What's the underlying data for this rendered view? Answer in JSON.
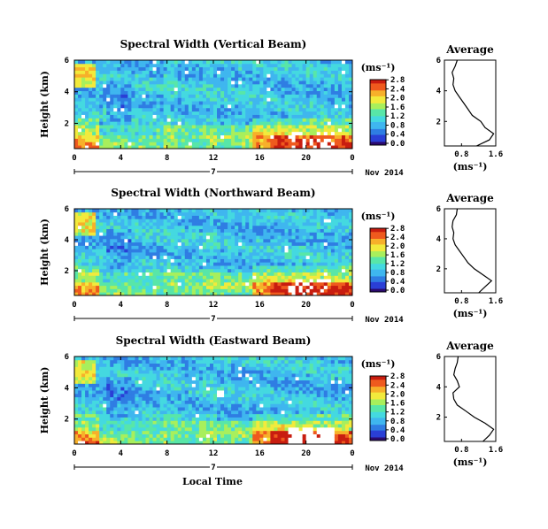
{
  "figure": {
    "xlabel": "Local Time",
    "date_label": "Nov 2014",
    "day_marker": "7",
    "colorbar_unit": "(ms⁻¹)",
    "average_title": "Average",
    "average_unit": "(ms⁻¹)",
    "ylabel": "Height (km)"
  },
  "colors": {
    "colormap": [
      "#2b0a70",
      "#2a3fd6",
      "#2f7de3",
      "#3fb6ef",
      "#44d9e0",
      "#58e6a8",
      "#a8ef5c",
      "#f2ea3c",
      "#f7b02a",
      "#ef5a1e",
      "#c81d10"
    ]
  },
  "chart_data": [
    {
      "type": "heatmap",
      "title": "Spectral Width (Vertical Beam)",
      "ylabel": "Height (km)",
      "xlabel": "",
      "x_ticks": [
        "0",
        "4",
        "8",
        "12",
        "16",
        "20",
        "0"
      ],
      "y_ticks": [
        "2",
        "4",
        "6"
      ],
      "xlim": [
        0,
        24
      ],
      "ylim": [
        0.4,
        6
      ],
      "colorbar_ticks": [
        "0.0",
        "0.4",
        "0.8",
        "1.2",
        "1.6",
        "2.0",
        "2.4",
        "2.8"
      ],
      "colorbar_range": [
        0,
        2.8
      ],
      "average": {
        "title": "Average",
        "xlabel": "(ms⁻¹)",
        "x_ticks": [
          "0.8",
          "1.6"
        ],
        "y_ticks": [
          "2",
          "4",
          "6"
        ],
        "xlim": [
          0.4,
          1.6
        ],
        "height_km": [
          0.4,
          0.8,
          1.2,
          1.6,
          2.0,
          2.4,
          2.8,
          3.2,
          3.6,
          4.0,
          4.4,
          4.8,
          5.2,
          5.6,
          6.0
        ],
        "width": [
          1.15,
          1.45,
          1.55,
          1.35,
          1.25,
          1.05,
          0.95,
          0.85,
          0.75,
          0.65,
          0.6,
          0.62,
          0.58,
          0.65,
          0.7
        ]
      }
    },
    {
      "type": "heatmap",
      "title": "Spectral Width (Northward Beam)",
      "ylabel": "Height (km)",
      "xlabel": "",
      "x_ticks": [
        "0",
        "4",
        "8",
        "12",
        "16",
        "20",
        "0"
      ],
      "y_ticks": [
        "2",
        "4",
        "6"
      ],
      "xlim": [
        0,
        24
      ],
      "ylim": [
        0.4,
        6
      ],
      "colorbar_ticks": [
        "0.0",
        "0.4",
        "0.8",
        "1.2",
        "1.6",
        "2.0",
        "2.4",
        "2.8"
      ],
      "colorbar_range": [
        0,
        2.8
      ],
      "average": {
        "title": "Average",
        "xlabel": "(ms⁻¹)",
        "x_ticks": [
          "0.8",
          "1.6"
        ],
        "y_ticks": [
          "2",
          "4",
          "6"
        ],
        "xlim": [
          0.4,
          1.6
        ],
        "height_km": [
          0.4,
          0.8,
          1.2,
          1.6,
          2.0,
          2.4,
          2.8,
          3.2,
          3.6,
          4.0,
          4.4,
          4.8,
          5.2,
          5.6,
          6.0
        ],
        "width": [
          1.2,
          1.35,
          1.5,
          1.3,
          1.1,
          0.95,
          0.85,
          0.75,
          0.65,
          0.6,
          0.62,
          0.58,
          0.6,
          0.68,
          0.7
        ]
      }
    },
    {
      "type": "heatmap",
      "title": "Spectral Width (Eastward Beam)",
      "ylabel": "Height (km)",
      "xlabel": "Local Time",
      "x_ticks": [
        "0",
        "4",
        "8",
        "12",
        "16",
        "20",
        "0"
      ],
      "y_ticks": [
        "2",
        "4",
        "6"
      ],
      "xlim": [
        0,
        24
      ],
      "ylim": [
        0.4,
        6
      ],
      "colorbar_ticks": [
        "0.0",
        "0.4",
        "0.8",
        "1.2",
        "1.6",
        "2.0",
        "2.4",
        "2.8"
      ],
      "colorbar_range": [
        0,
        2.8
      ],
      "average": {
        "title": "Average",
        "xlabel": "(ms⁻¹)",
        "x_ticks": [
          "0.8",
          "1.6"
        ],
        "y_ticks": [
          "2",
          "4",
          "6"
        ],
        "xlim": [
          0.4,
          1.6
        ],
        "height_km": [
          0.4,
          0.8,
          1.2,
          1.6,
          2.0,
          2.4,
          2.8,
          3.2,
          3.6,
          4.0,
          4.4,
          4.8,
          5.2,
          5.6,
          6.0
        ],
        "width": [
          1.3,
          1.45,
          1.55,
          1.35,
          1.1,
          0.9,
          0.7,
          0.62,
          0.6,
          0.75,
          0.7,
          0.62,
          0.65,
          0.7,
          0.72
        ]
      }
    }
  ]
}
